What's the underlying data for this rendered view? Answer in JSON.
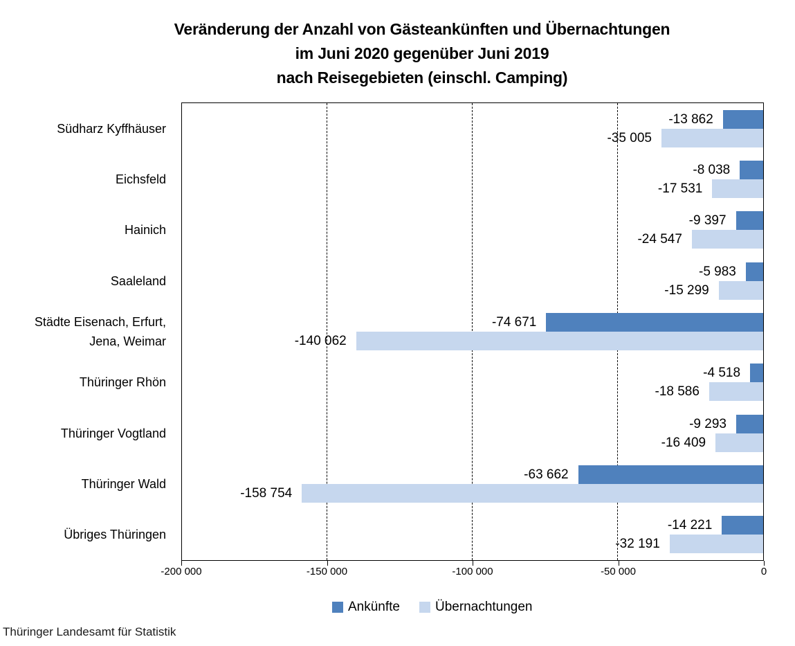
{
  "title": {
    "lines": [
      "Veränderung der Anzahl von Gästeankünften und Übernachtungen",
      "im Juni 2020 gegenüber Juni 2019",
      "nach Reisegebieten (einschl. Camping)"
    ]
  },
  "source": "Thüringer Landesamt für Statistik",
  "colors": {
    "ankuenfte": "#4f81bd",
    "uebernachtungen": "#c6d7ee",
    "axis": "#000000",
    "background": "#ffffff"
  },
  "legend": {
    "items": [
      {
        "label": "Ankünfte",
        "color": "#4f81bd"
      },
      {
        "label": "Übernachtungen",
        "color": "#c6d7ee"
      }
    ]
  },
  "chart_data": {
    "type": "bar",
    "orientation": "horizontal",
    "title": "Veränderung der Anzahl von Gästeankünften und Übernachtungen im Juni 2020 gegenüber Juni 2019 nach Reisegebieten (einschl. Camping)",
    "categories": [
      "Südharz Kyffhäuser",
      "Eichsfeld",
      "Hainich",
      "Saaleland",
      "Städte Eisenach, Erfurt, Jena, Weimar",
      "Thüringer Rhön",
      "Thüringer Vogtland",
      "Thüringer Wald",
      "Übriges Thüringen"
    ],
    "category_display": [
      [
        "Südharz Kyffhäuser"
      ],
      [
        "Eichsfeld"
      ],
      [
        "Hainich"
      ],
      [
        "Saaleland"
      ],
      [
        "Städte Eisenach, Erfurt,",
        "Jena, Weimar"
      ],
      [
        "Thüringer Rhön"
      ],
      [
        "Thüringer Vogtland"
      ],
      [
        "Thüringer Wald"
      ],
      [
        "Übriges Thüringen"
      ]
    ],
    "series": [
      {
        "name": "Ankünfte",
        "color": "#4f81bd",
        "values": [
          -13862,
          -8038,
          -9397,
          -5983,
          -74671,
          -4518,
          -9293,
          -63662,
          -14221
        ],
        "labels": [
          "-13 862",
          "-8 038",
          "-9 397",
          "-5 983",
          "-74 671",
          "-4 518",
          "-9 293",
          "-63 662",
          "-14 221"
        ]
      },
      {
        "name": "Übernachtungen",
        "color": "#c6d7ee",
        "values": [
          -35005,
          -17531,
          -24547,
          -15299,
          -140062,
          -18586,
          -16409,
          -158754,
          -32191
        ],
        "labels": [
          "-35 005",
          "-17 531",
          "-24 547",
          "-15 299",
          "-140 062",
          "-18 586",
          "-16 409",
          "-158 754",
          "-32 191"
        ]
      }
    ],
    "xlim": [
      -200000,
      0
    ],
    "x_ticks": [
      {
        "value": -200000,
        "label": "-200 000"
      },
      {
        "value": -150000,
        "label": "-150 000"
      },
      {
        "value": -100000,
        "label": "-100 000"
      },
      {
        "value": -50000,
        "label": "-50 000"
      },
      {
        "value": 0,
        "label": "0"
      }
    ],
    "gridlines": {
      "style": "dashed",
      "values": [
        -150000,
        -100000,
        -50000
      ]
    },
    "legend_position": "bottom",
    "value_labels_position": "outside-end"
  }
}
